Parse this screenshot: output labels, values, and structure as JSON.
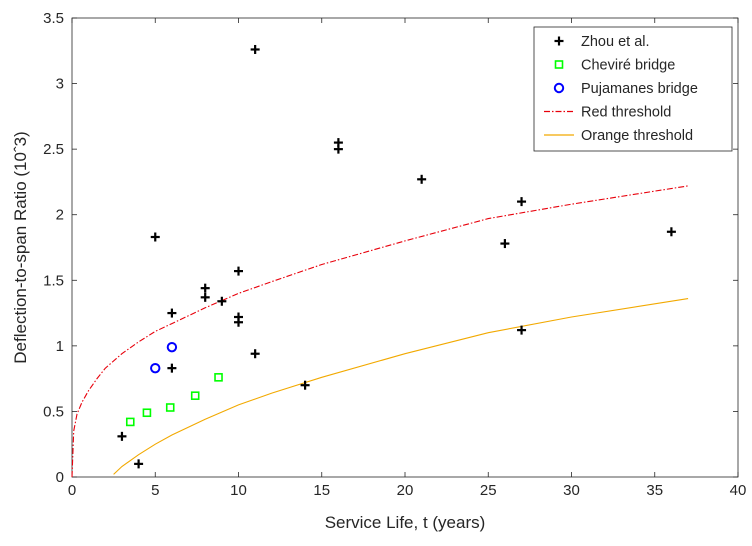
{
  "chart_data": {
    "type": "scatter",
    "title": "",
    "xlabel": "Service Life, t (years)",
    "ylabel": "Deflection-to-span Ratio (10ˆ3)",
    "xlim": [
      0,
      40
    ],
    "ylim": [
      0,
      3.5
    ],
    "x_ticks": [
      0,
      5,
      10,
      15,
      20,
      25,
      30,
      35,
      40
    ],
    "y_ticks": [
      0,
      0.5,
      1,
      1.5,
      2,
      2.5,
      3,
      3.5
    ],
    "x_tick_labels": [
      "0",
      "5",
      "10",
      "15",
      "20",
      "25",
      "30",
      "35",
      "40"
    ],
    "y_tick_labels": [
      "0",
      "0.5",
      "1",
      "1.5",
      "2",
      "2.5",
      "3",
      "3.5"
    ],
    "grid": false,
    "legend_position": "top-right",
    "series": [
      {
        "name": "Zhou et al.",
        "kind": "scatter",
        "marker": "plus",
        "color": "#000000",
        "points": [
          {
            "x": 3.0,
            "y": 0.31
          },
          {
            "x": 4.0,
            "y": 0.1
          },
          {
            "x": 5.0,
            "y": 1.83
          },
          {
            "x": 6.0,
            "y": 1.25
          },
          {
            "x": 6.0,
            "y": 0.83
          },
          {
            "x": 8.0,
            "y": 1.44
          },
          {
            "x": 8.0,
            "y": 1.37
          },
          {
            "x": 9.0,
            "y": 1.34
          },
          {
            "x": 10.0,
            "y": 1.57
          },
          {
            "x": 10.0,
            "y": 1.22
          },
          {
            "x": 10.0,
            "y": 1.18
          },
          {
            "x": 11.0,
            "y": 3.26
          },
          {
            "x": 11.0,
            "y": 0.94
          },
          {
            "x": 14.0,
            "y": 0.7
          },
          {
            "x": 16.0,
            "y": 2.55
          },
          {
            "x": 16.0,
            "y": 2.5
          },
          {
            "x": 21.0,
            "y": 2.27
          },
          {
            "x": 26.0,
            "y": 1.78
          },
          {
            "x": 27.0,
            "y": 2.1
          },
          {
            "x": 27.0,
            "y": 1.12
          },
          {
            "x": 36.0,
            "y": 1.87
          }
        ]
      },
      {
        "name": "Cheviré bridge",
        "kind": "scatter",
        "marker": "square",
        "color": "#00ff00",
        "points": [
          {
            "x": 3.5,
            "y": 0.42
          },
          {
            "x": 4.5,
            "y": 0.49
          },
          {
            "x": 5.9,
            "y": 0.53
          },
          {
            "x": 7.4,
            "y": 0.62
          },
          {
            "x": 8.8,
            "y": 0.76
          }
        ]
      },
      {
        "name": "Pujamanes bridge",
        "kind": "scatter",
        "marker": "circle",
        "color": "#0000ff",
        "points": [
          {
            "x": 5.0,
            "y": 0.83
          },
          {
            "x": 6.0,
            "y": 0.99
          }
        ]
      },
      {
        "name": "Red threshold",
        "kind": "line",
        "dash": "dashdot",
        "color": "#e8000b",
        "points": [
          {
            "x": 0.0,
            "y": 0.0
          },
          {
            "x": 0.1,
            "y": 0.35
          },
          {
            "x": 0.3,
            "y": 0.48
          },
          {
            "x": 0.6,
            "y": 0.57
          },
          {
            "x": 1.0,
            "y": 0.66
          },
          {
            "x": 1.5,
            "y": 0.75
          },
          {
            "x": 2.0,
            "y": 0.83
          },
          {
            "x": 3.0,
            "y": 0.94
          },
          {
            "x": 4.0,
            "y": 1.03
          },
          {
            "x": 5.0,
            "y": 1.11
          },
          {
            "x": 6.0,
            "y": 1.17
          },
          {
            "x": 8.0,
            "y": 1.29
          },
          {
            "x": 10.0,
            "y": 1.4
          },
          {
            "x": 12.0,
            "y": 1.49
          },
          {
            "x": 15.0,
            "y": 1.62
          },
          {
            "x": 20.0,
            "y": 1.8
          },
          {
            "x": 25.0,
            "y": 1.97
          },
          {
            "x": 30.0,
            "y": 2.08
          },
          {
            "x": 37.0,
            "y": 2.22
          }
        ]
      },
      {
        "name": "Orange threshold",
        "kind": "line",
        "dash": "solid",
        "color": "#f2a900",
        "points": [
          {
            "x": 2.5,
            "y": 0.02
          },
          {
            "x": 3.0,
            "y": 0.08
          },
          {
            "x": 4.0,
            "y": 0.17
          },
          {
            "x": 5.0,
            "y": 0.25
          },
          {
            "x": 6.0,
            "y": 0.32
          },
          {
            "x": 8.0,
            "y": 0.44
          },
          {
            "x": 10.0,
            "y": 0.55
          },
          {
            "x": 12.0,
            "y": 0.64
          },
          {
            "x": 15.0,
            "y": 0.76
          },
          {
            "x": 20.0,
            "y": 0.94
          },
          {
            "x": 25.0,
            "y": 1.1
          },
          {
            "x": 30.0,
            "y": 1.22
          },
          {
            "x": 37.0,
            "y": 1.36
          }
        ]
      }
    ]
  }
}
